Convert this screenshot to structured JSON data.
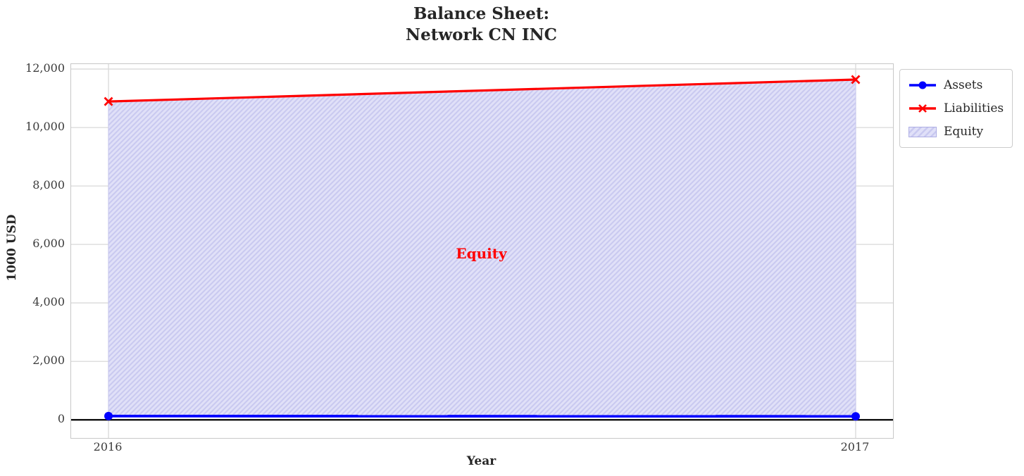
{
  "chart_data": {
    "type": "area",
    "title": "Balance Sheet:\nNetwork CN INC",
    "xlabel": "Year",
    "ylabel": "1000 USD",
    "x": [
      2016,
      2017
    ],
    "xtick_labels": [
      "2016",
      "2017"
    ],
    "yticks": [
      0,
      2000,
      4000,
      6000,
      8000,
      10000,
      12000
    ],
    "ytick_labels": [
      "0",
      "2,000",
      "4,000",
      "6,000",
      "8,000",
      "10,000",
      "12,000"
    ],
    "xlim": [
      2015.95,
      2017.05
    ],
    "ylim": [
      -620,
      12170
    ],
    "grid": true,
    "series": [
      {
        "name": "Assets",
        "values": [
          130,
          120
        ],
        "color": "#0000ff",
        "marker": "circle",
        "line_width": 3.8
      },
      {
        "name": "Liabilities",
        "values": [
          10890,
          11640
        ],
        "color": "#ff0000",
        "marker": "x",
        "line_width": 3.2
      }
    ],
    "area_between": {
      "label": "Equity",
      "lower_series": "Assets",
      "upper_series": "Liabilities",
      "fill_color": "#e0e0f8",
      "hatch": "/",
      "hatch_color": "#c9c9f0"
    },
    "annotation": {
      "text": "Equity",
      "x": 2016.5,
      "y": 5670,
      "color": "#ff0000"
    },
    "zero_line": {
      "y": 0,
      "color": "#000000"
    },
    "legend": {
      "position": "upper-right-outside",
      "items": [
        {
          "label": "Assets",
          "swatch": "line-circle",
          "color": "#0000ff"
        },
        {
          "label": "Liabilities",
          "swatch": "line-x",
          "color": "#ff0000"
        },
        {
          "label": "Equity",
          "swatch": "hatch-patch",
          "color": "#c9c9f0"
        }
      ]
    },
    "colors": {
      "grid": "#d9d9d9",
      "spine": "#c8c8c8",
      "text": "#262626"
    }
  }
}
